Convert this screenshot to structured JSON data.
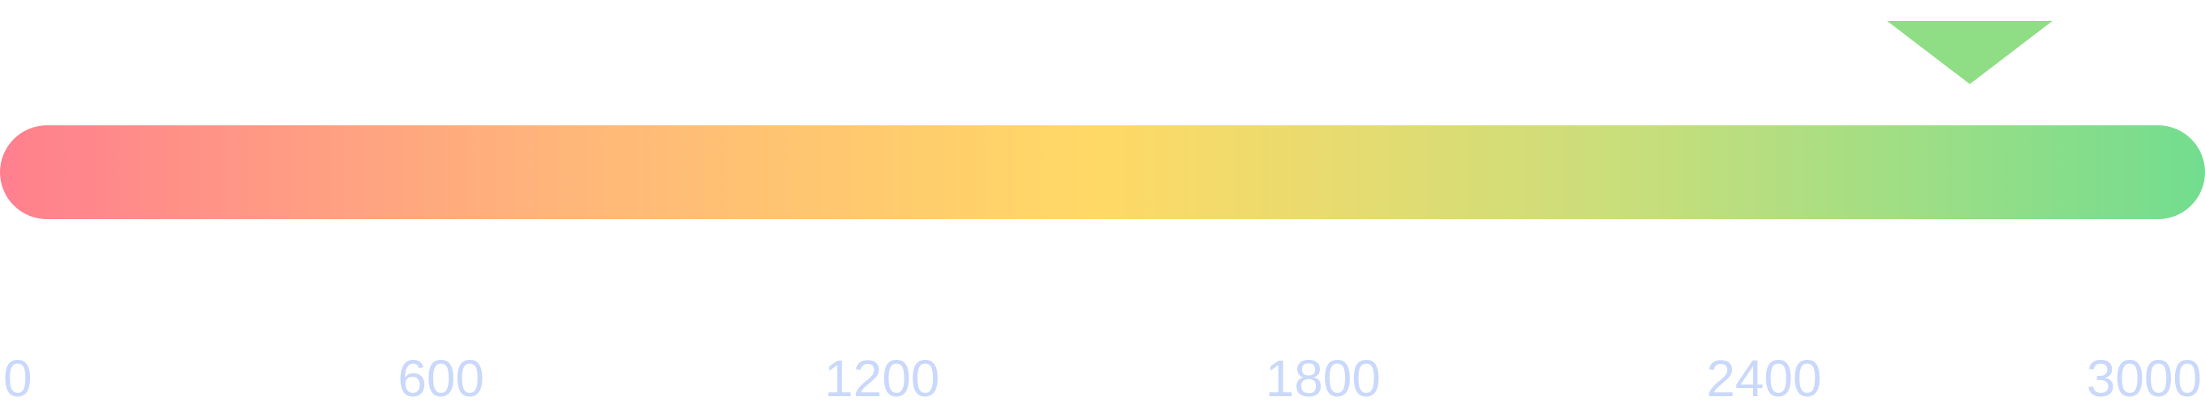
{
  "chart_data": {
    "type": "gauge",
    "min": 0,
    "max": 3000,
    "value": 2680,
    "ticks": [
      0,
      600,
      1200,
      1800,
      2400,
      3000
    ],
    "tick_labels": [
      "0",
      "600",
      "1200",
      "1800",
      "2400",
      "3000"
    ],
    "gradient_colors": [
      "#ff7f8e",
      "#ffb57a",
      "#ffd966",
      "#c6de7c",
      "#72dd8f"
    ],
    "marker_color": "#8fdd84",
    "tick_label_color": "#c9d8fb"
  }
}
